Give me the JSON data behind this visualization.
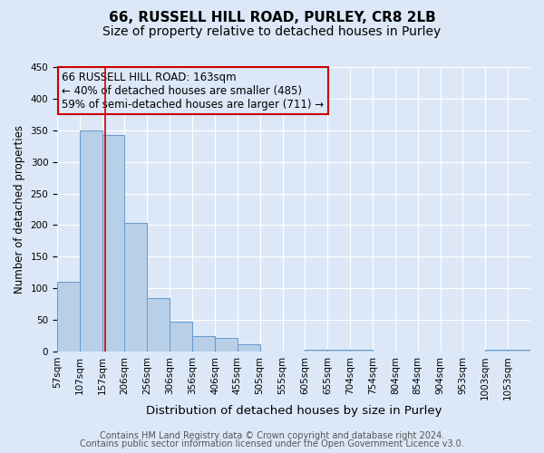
{
  "title": "66, RUSSELL HILL ROAD, PURLEY, CR8 2LB",
  "subtitle": "Size of property relative to detached houses in Purley",
  "xlabel": "Distribution of detached houses by size in Purley",
  "ylabel": "Number of detached properties",
  "bin_labels": [
    "57sqm",
    "107sqm",
    "157sqm",
    "206sqm",
    "256sqm",
    "306sqm",
    "356sqm",
    "406sqm",
    "455sqm",
    "505sqm",
    "555sqm",
    "605sqm",
    "655sqm",
    "704sqm",
    "754sqm",
    "804sqm",
    "854sqm",
    "904sqm",
    "953sqm",
    "1003sqm",
    "1053sqm"
  ],
  "bar_heights": [
    110,
    350,
    343,
    203,
    85,
    47,
    25,
    22,
    12,
    0,
    0,
    3,
    3,
    3,
    0,
    0,
    0,
    0,
    0,
    3,
    3
  ],
  "bar_color": "#b8cfe8",
  "bar_edge_color": "#6699cc",
  "background_color": "#dce8f8",
  "grid_color": "#ffffff",
  "annotation_box_text": "66 RUSSELL HILL ROAD: 163sqm\n← 40% of detached houses are smaller (485)\n59% of semi-detached houses are larger (711) →",
  "annotation_box_color": "#cc0000",
  "vline_x": 163,
  "vline_color": "#cc0000",
  "ylim": [
    0,
    450
  ],
  "yticks": [
    0,
    50,
    100,
    150,
    200,
    250,
    300,
    350,
    400,
    450
  ],
  "footer_line1": "Contains HM Land Registry data © Crown copyright and database right 2024.",
  "footer_line2": "Contains public sector information licensed under the Open Government Licence v3.0.",
  "title_fontsize": 11,
  "subtitle_fontsize": 10,
  "xlabel_fontsize": 9.5,
  "ylabel_fontsize": 8.5,
  "tick_fontsize": 7.5,
  "annotation_fontsize": 8.5,
  "footer_fontsize": 7,
  "bin_edges": [
    57,
    107,
    157,
    206,
    256,
    306,
    356,
    406,
    455,
    505,
    555,
    605,
    655,
    704,
    754,
    804,
    854,
    904,
    953,
    1003,
    1053,
    1103
  ]
}
